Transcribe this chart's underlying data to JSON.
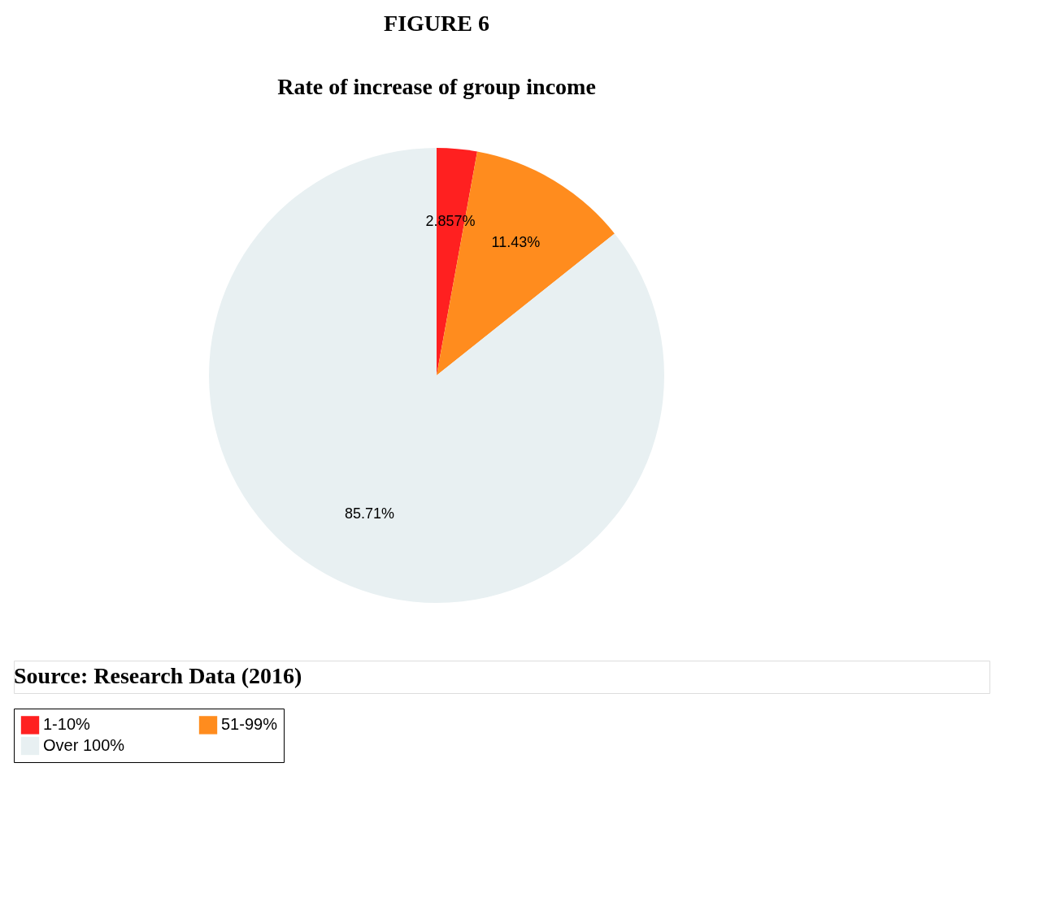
{
  "chart_data": {
    "type": "pie",
    "title": "FIGURE 6",
    "subtitle": "Rate of increase of group income",
    "categories": [
      "1-10%",
      "51-99%",
      "Over 100%"
    ],
    "values": [
      2.857,
      11.43,
      85.71
    ],
    "colors": [
      "#ff2020",
      "#ff8c1e",
      "#e8f0f2"
    ],
    "value_labels": [
      "2.857%",
      "11.43%",
      "85.71%"
    ],
    "legend": "bottom",
    "annotations": [
      "Source: Research Data (2016)"
    ]
  }
}
